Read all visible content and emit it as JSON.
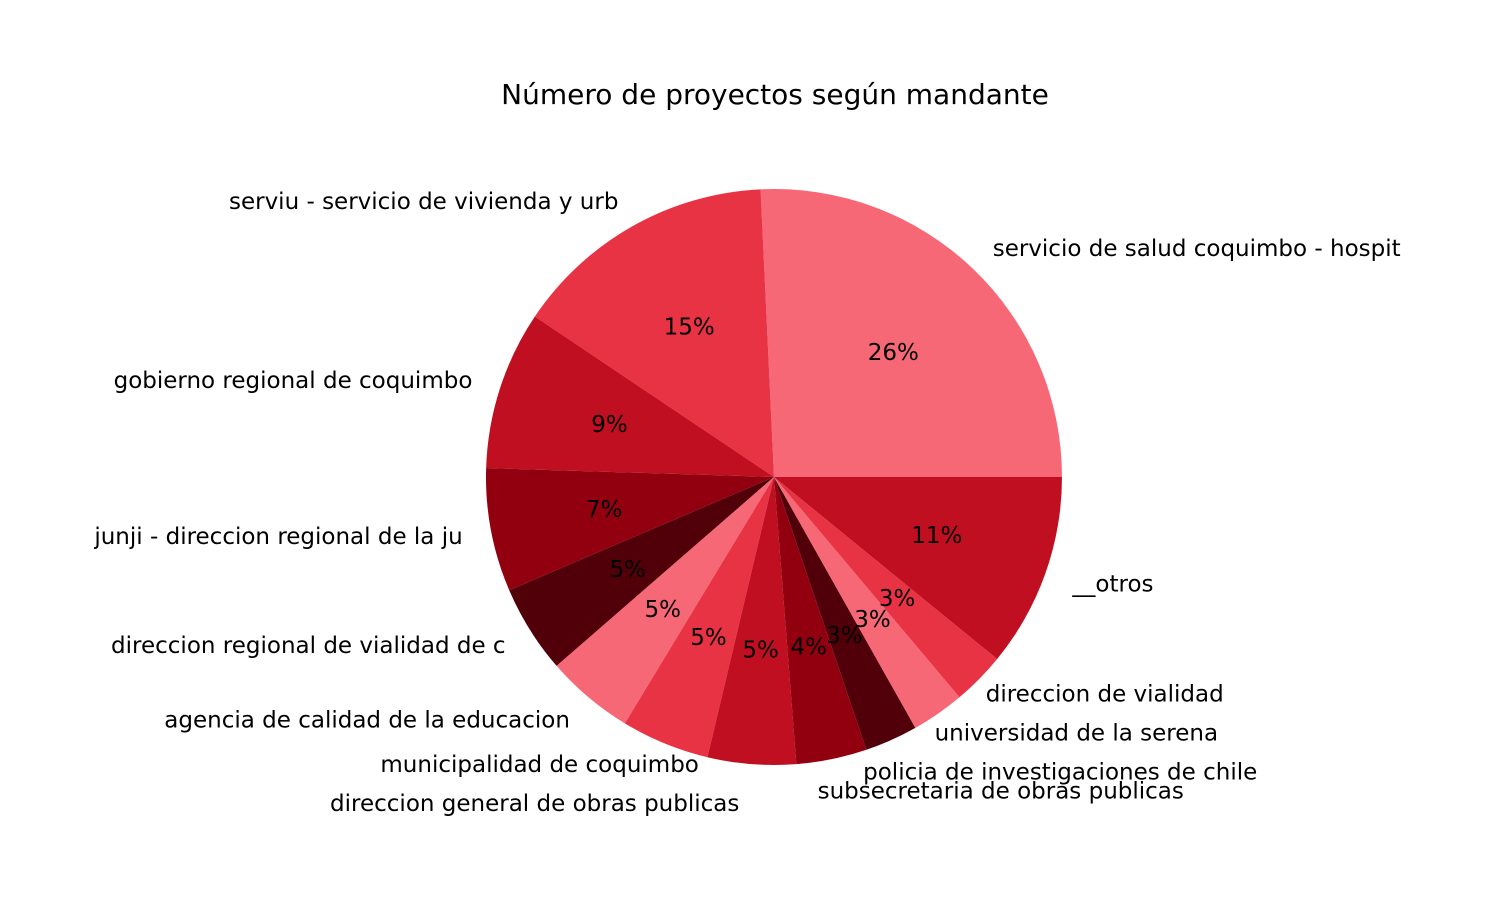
{
  "chart_data": {
    "type": "pie",
    "title": "Número de proyectos según mandante",
    "slices": [
      {
        "label": "servicio de salud coquimbo - hospit",
        "value": 26,
        "pct_label": "26%",
        "color": "#f76876"
      },
      {
        "label": "serviu - servicio de vivienda y urb",
        "value": 15,
        "pct_label": "15%",
        "color": "#e83345"
      },
      {
        "label": "gobierno regional de coquimbo",
        "value": 9,
        "pct_label": "9%",
        "color": "#c00f20"
      },
      {
        "label": "junji - direccion regional de la ju",
        "value": 7,
        "pct_label": "7%",
        "color": "#920010"
      },
      {
        "label": "direccion regional de vialidad de c",
        "value": 5,
        "pct_label": "5%",
        "color": "#51000a"
      },
      {
        "label": "agencia de calidad de la educacion",
        "value": 5,
        "pct_label": "5%",
        "color": "#f76876"
      },
      {
        "label": "municipalidad de coquimbo",
        "value": 5,
        "pct_label": "5%",
        "color": "#e83345"
      },
      {
        "label": "direccion general de obras publicas",
        "value": 5,
        "pct_label": "5%",
        "color": "#c00f20"
      },
      {
        "label": "subsecretaria de obras publicas",
        "value": 4,
        "pct_label": "4%",
        "color": "#920010"
      },
      {
        "label": "policia de investigaciones de chile",
        "value": 3,
        "pct_label": "3%",
        "color": "#51000a"
      },
      {
        "label": "universidad de la serena",
        "value": 3,
        "pct_label": "3%",
        "color": "#f76876"
      },
      {
        "label": "direccion de vialidad",
        "value": 3,
        "pct_label": "3%",
        "color": "#e83345"
      },
      {
        "label": "__otros",
        "value": 11,
        "pct_label": "11%",
        "color": "#c00f20"
      }
    ],
    "start_angle_deg": 0,
    "direction": "counterclockwise",
    "legend": "none"
  }
}
